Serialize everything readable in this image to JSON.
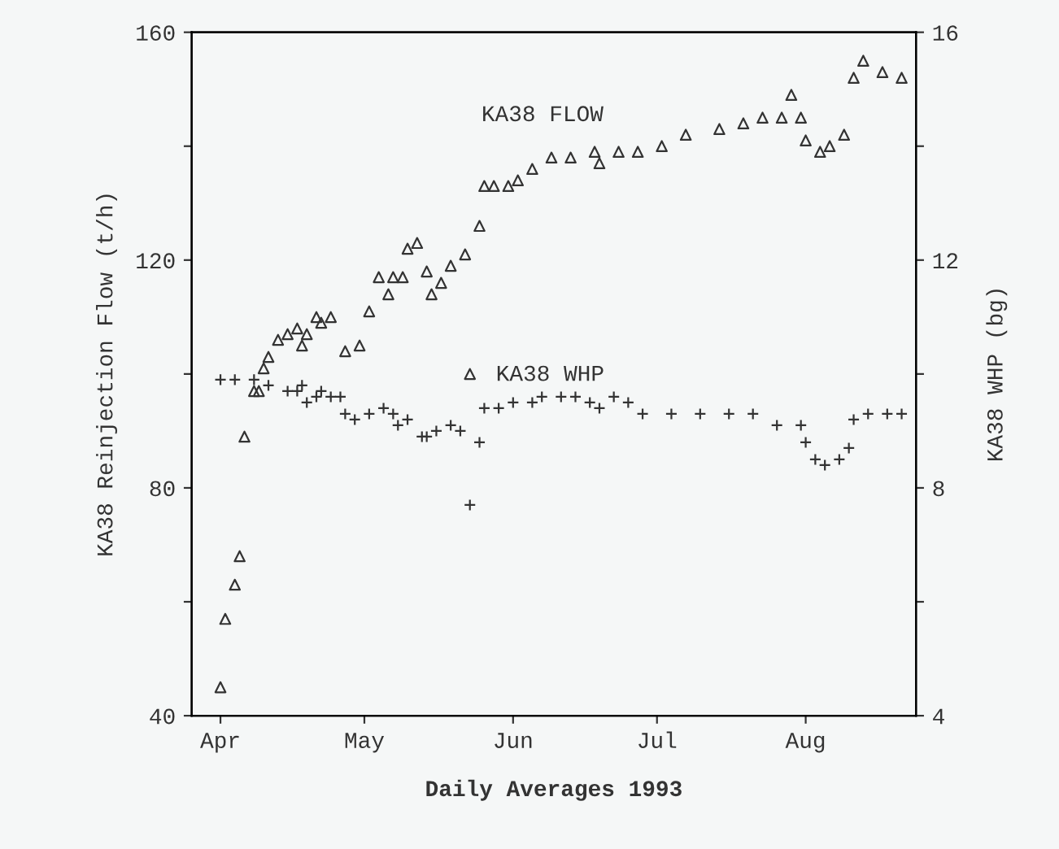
{
  "chart_data": {
    "type": "scatter",
    "xlabel": "Daily Averages 1993",
    "ylabel": "KA38 Reinjection Flow (t/h)",
    "y2label": "KA38 WHP (bg)",
    "xlim": [
      "1993-03-26",
      "1993-08-24"
    ],
    "xticks": [
      {
        "value": "1993-04-01",
        "label": "Apr"
      },
      {
        "value": "1993-05-01",
        "label": "May"
      },
      {
        "value": "1993-06-01",
        "label": "Jun"
      },
      {
        "value": "1993-07-01",
        "label": "Jul"
      },
      {
        "value": "1993-08-01",
        "label": "Aug"
      }
    ],
    "ylim": [
      40,
      160
    ],
    "yticks": [
      40,
      {
        "value": 60,
        "label": null
      },
      80,
      {
        "value": 100,
        "label": null
      },
      120,
      {
        "value": 140,
        "label": null
      },
      160
    ],
    "y2lim": [
      4,
      16
    ],
    "y2ticks": [
      4,
      {
        "value": 6,
        "label": null
      },
      8,
      {
        "value": 10,
        "label": null
      },
      12,
      {
        "value": 14,
        "label": null
      },
      16
    ],
    "grid": false,
    "legend": false,
    "series": [
      {
        "name": "KA38 FLOW",
        "color": "#333333",
        "marker": "triangle",
        "x": [
          "1993-04-01",
          "1993-04-02",
          "1993-04-04",
          "1993-04-05",
          "1993-04-06",
          "1993-04-08",
          "1993-04-09",
          "1993-04-10",
          "1993-04-11",
          "1993-04-13",
          "1993-04-15",
          "1993-04-17",
          "1993-04-18",
          "1993-04-19",
          "1993-04-21",
          "1993-04-22",
          "1993-04-24",
          "1993-04-27",
          "1993-04-30",
          "1993-05-02",
          "1993-05-04",
          "1993-05-06",
          "1993-05-07",
          "1993-05-09",
          "1993-05-10",
          "1993-05-12",
          "1993-05-14",
          "1993-05-15",
          "1993-05-17",
          "1993-05-19",
          "1993-05-22",
          "1993-05-23",
          "1993-05-25",
          "1993-05-26",
          "1993-05-28",
          "1993-05-31",
          "1993-06-02",
          "1993-06-05",
          "1993-06-09",
          "1993-06-13",
          "1993-06-18",
          "1993-06-19",
          "1993-06-23",
          "1993-06-27",
          "1993-07-02",
          "1993-07-07",
          "1993-07-14",
          "1993-07-19",
          "1993-07-23",
          "1993-07-27",
          "1993-07-29",
          "1993-07-31",
          "1993-08-01",
          "1993-08-04",
          "1993-08-06",
          "1993-08-09",
          "1993-08-11",
          "1993-08-13",
          "1993-08-17",
          "1993-08-21"
        ],
        "values": [
          45,
          57,
          63,
          68,
          89,
          97,
          97,
          101,
          103,
          106,
          107,
          108,
          105,
          107,
          110,
          109,
          110,
          104,
          105,
          111,
          117,
          114,
          117,
          117,
          122,
          123,
          118,
          114,
          116,
          119,
          121,
          100,
          126,
          133,
          133,
          133,
          134,
          136,
          138,
          138,
          139,
          137,
          139,
          139,
          140,
          142,
          143,
          144,
          145,
          145,
          149,
          145,
          141,
          139,
          140,
          142,
          152,
          155,
          153,
          152
        ]
      },
      {
        "name": "KA38 WHP",
        "color": "#333333",
        "marker": "cross",
        "axis": "y2",
        "x": [
          "1993-04-01",
          "1993-04-04",
          "1993-04-08",
          "1993-04-11",
          "1993-04-15",
          "1993-04-17",
          "1993-04-18",
          "1993-04-19",
          "1993-04-21",
          "1993-04-22",
          "1993-04-24",
          "1993-04-26",
          "1993-04-27",
          "1993-04-29",
          "1993-05-02",
          "1993-05-05",
          "1993-05-07",
          "1993-05-08",
          "1993-05-10",
          "1993-05-13",
          "1993-05-14",
          "1993-05-16",
          "1993-05-19",
          "1993-05-21",
          "1993-05-23",
          "1993-05-25",
          "1993-05-26",
          "1993-05-29",
          "1993-06-01",
          "1993-06-05",
          "1993-06-07",
          "1993-06-11",
          "1993-06-14",
          "1993-06-17",
          "1993-06-19",
          "1993-06-22",
          "1993-06-25",
          "1993-06-28",
          "1993-07-04",
          "1993-07-10",
          "1993-07-16",
          "1993-07-21",
          "1993-07-26",
          "1993-07-31",
          "1993-08-01",
          "1993-08-03",
          "1993-08-05",
          "1993-08-08",
          "1993-08-10",
          "1993-08-11",
          "1993-08-14",
          "1993-08-18",
          "1993-08-21"
        ],
        "values": [
          9.9,
          9.9,
          9.9,
          9.8,
          9.7,
          9.7,
          9.8,
          9.5,
          9.6,
          9.7,
          9.6,
          9.6,
          9.3,
          9.2,
          9.3,
          9.4,
          9.3,
          9.1,
          9.2,
          8.9,
          8.9,
          9.0,
          9.1,
          9.0,
          7.7,
          8.8,
          9.4,
          9.4,
          9.5,
          9.5,
          9.6,
          9.6,
          9.6,
          9.5,
          9.4,
          9.6,
          9.5,
          9.3,
          9.3,
          9.3,
          9.3,
          9.3,
          9.1,
          9.1,
          8.8,
          8.5,
          8.4,
          8.5,
          8.7,
          9.2,
          9.3,
          9.3,
          9.3
        ]
      }
    ]
  }
}
